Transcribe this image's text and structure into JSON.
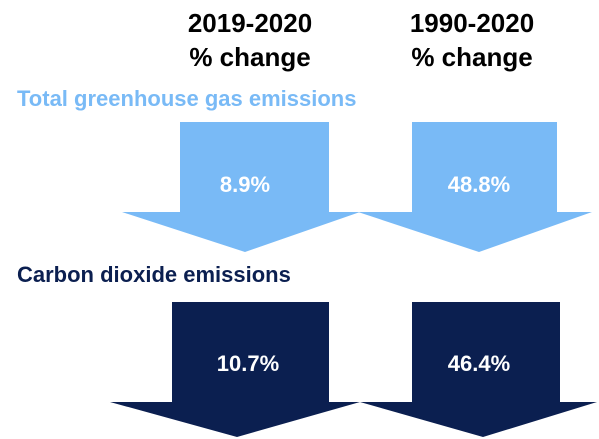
{
  "headers": {
    "left": {
      "line1": "2019-2020",
      "line2": "% change"
    },
    "right": {
      "line1": "1990-2020",
      "line2": "% change"
    }
  },
  "sections": [
    {
      "title": "Total greenhouse gas emissions",
      "color": "#79baf6",
      "values": [
        "8.9%",
        "48.8%"
      ]
    },
    {
      "title": "Carbon dioxide emissions",
      "color": "#0b1f50",
      "values": [
        "10.7%",
        "46.4%"
      ]
    }
  ]
}
